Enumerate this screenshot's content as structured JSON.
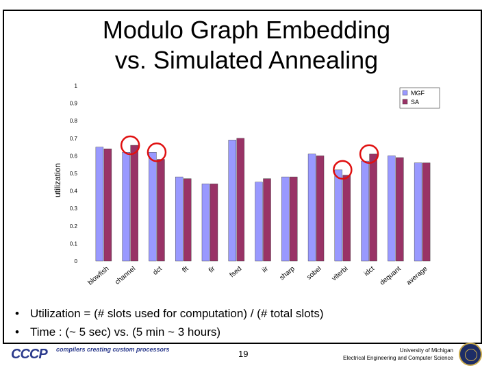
{
  "slide": {
    "title_line1": "Modulo Graph Embedding",
    "title_line2": "vs. Simulated Annealing",
    "bullets": [
      "Utilization = (# slots used for computation) / (# total slots)",
      "Time : (~ 5 sec) vs. (5 min ~ 3 hours)"
    ],
    "footer": {
      "logo": "CCCP",
      "tagline": "compilers creating custom processors",
      "page_number": "19",
      "university_line1": "University of Michigan",
      "university_line2": "Electrical Engineering and Computer Science"
    }
  },
  "chart_data": {
    "type": "bar",
    "title": "",
    "ylabel": "utilization",
    "xlabel": "",
    "ylim": [
      0,
      1
    ],
    "yticks": [
      "0",
      "0.1",
      "0.2",
      "0.3",
      "0.4",
      "0.5",
      "0.6",
      "0.7",
      "0.8",
      "0.9",
      "1"
    ],
    "legend_position": "top-right",
    "categories": [
      "blowfish",
      "channel",
      "dct",
      "fft",
      "fir",
      "fsed",
      "iir",
      "sharp",
      "sobel",
      "viterbi",
      "idct",
      "dequant",
      "average"
    ],
    "series": [
      {
        "name": "MGF",
        "color": "#9999ff",
        "values": [
          0.65,
          0.62,
          0.62,
          0.48,
          0.44,
          0.69,
          0.45,
          0.48,
          0.61,
          0.52,
          0.57,
          0.6,
          0.56
        ]
      },
      {
        "name": "SA",
        "color": "#993366",
        "values": [
          0.64,
          0.66,
          0.58,
          0.47,
          0.44,
          0.7,
          0.47,
          0.48,
          0.6,
          0.49,
          0.61,
          0.59,
          0.56
        ]
      }
    ],
    "highlight_color": "#e01010"
  }
}
